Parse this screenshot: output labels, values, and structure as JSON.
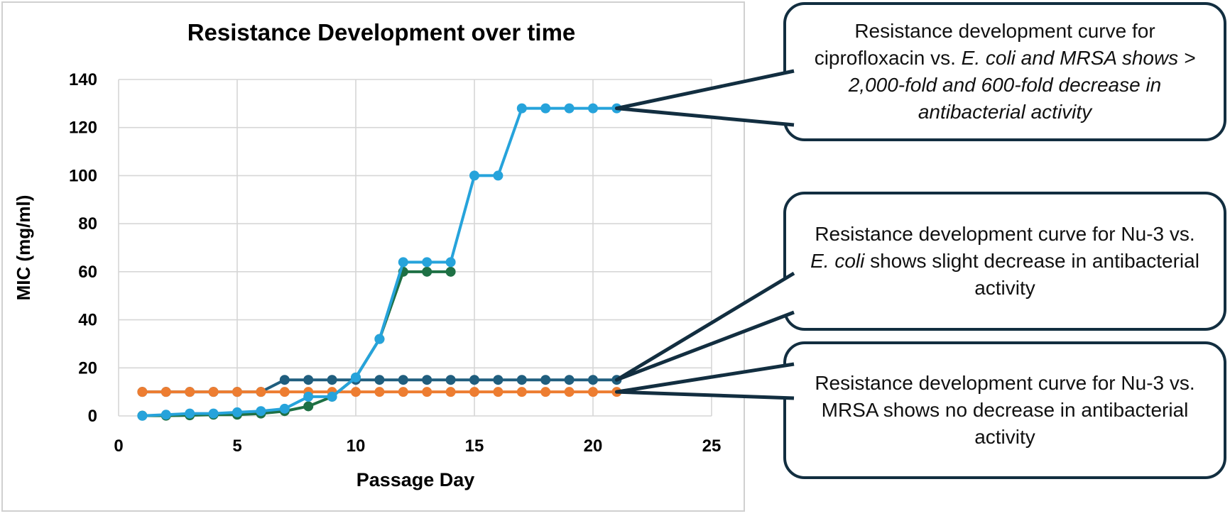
{
  "chart_data": {
    "type": "line",
    "title": "Resistance Development over time",
    "xlabel": "Passage Day",
    "ylabel": "MIC (mg/ml)",
    "xlim": [
      0,
      25
    ],
    "ylim": [
      0,
      140
    ],
    "x_ticks": [
      0,
      5,
      10,
      15,
      20,
      25
    ],
    "y_ticks": [
      0,
      20,
      40,
      60,
      80,
      100,
      120,
      140
    ],
    "grid": true,
    "legend_position": "none",
    "marker": "circle",
    "series": [
      {
        "name": "Ciprofloxacin vs. E. coli",
        "color": "#26A3DB",
        "x": [
          1,
          2,
          3,
          4,
          5,
          6,
          7,
          8,
          9,
          10,
          11,
          12,
          13,
          14,
          15,
          16,
          17,
          18,
          19,
          20,
          21
        ],
        "values": [
          0.0625,
          0.5,
          1,
          1,
          1.5,
          2,
          3,
          8,
          8,
          16,
          32,
          64,
          64,
          64,
          100,
          100,
          128,
          128,
          128,
          128,
          128
        ]
      },
      {
        "name": "Ciprofloxacin vs. MRSA",
        "color": "#1E7044",
        "x": [
          1,
          2,
          3,
          4,
          5,
          6,
          7,
          8,
          9,
          10,
          11,
          12,
          13,
          14
        ],
        "values": [
          0.1,
          0.1,
          0.25,
          0.5,
          0.5,
          1,
          2,
          4,
          8,
          16,
          32,
          60,
          60,
          60
        ]
      },
      {
        "name": "Nu-3 vs. E. coli",
        "color": "#205E7E",
        "x": [
          1,
          2,
          3,
          4,
          5,
          6,
          7,
          8,
          9,
          10,
          11,
          12,
          13,
          14,
          15,
          16,
          17,
          18,
          19,
          20,
          21
        ],
        "values": [
          10,
          10,
          10,
          10,
          10,
          10,
          15,
          15,
          15,
          15,
          15,
          15,
          15,
          15,
          15,
          15,
          15,
          15,
          15,
          15,
          15
        ]
      },
      {
        "name": "Nu-3 vs. MRSA",
        "color": "#ED7D31",
        "x": [
          1,
          2,
          3,
          4,
          5,
          6,
          7,
          8,
          9,
          10,
          11,
          12,
          13,
          14,
          15,
          16,
          17,
          18,
          19,
          20,
          21
        ],
        "values": [
          10,
          10,
          10,
          10,
          10,
          10,
          10,
          10,
          10,
          10,
          10,
          10,
          10,
          10,
          10,
          10,
          10,
          10,
          10,
          10,
          10
        ]
      }
    ]
  },
  "callouts": [
    {
      "segments": [
        {
          "text": "Resistance development curve for ciprofloxacin vs. ",
          "italic": false
        },
        {
          "text": "E. coli and MRSA shows > 2,000-fold and 600-fold decrease in antibacterial activity",
          "italic": true
        }
      ]
    },
    {
      "segments": [
        {
          "text": "Resistance development curve for Nu-3 vs. ",
          "italic": false
        },
        {
          "text": "E. coli",
          "italic": true
        },
        {
          "text": " shows slight decrease in antibacterial activity",
          "italic": false
        }
      ]
    },
    {
      "segments": [
        {
          "text": "Resistance development curve for Nu-3 vs. MRSA shows no decrease in antibacterial activity",
          "italic": false
        }
      ]
    }
  ],
  "colors": {
    "callout_border": "#122E40",
    "pointer_line": "#122E40",
    "gridline": "#D6D6D6",
    "chart_frame": "#D0D0D0",
    "text": "#000000"
  }
}
